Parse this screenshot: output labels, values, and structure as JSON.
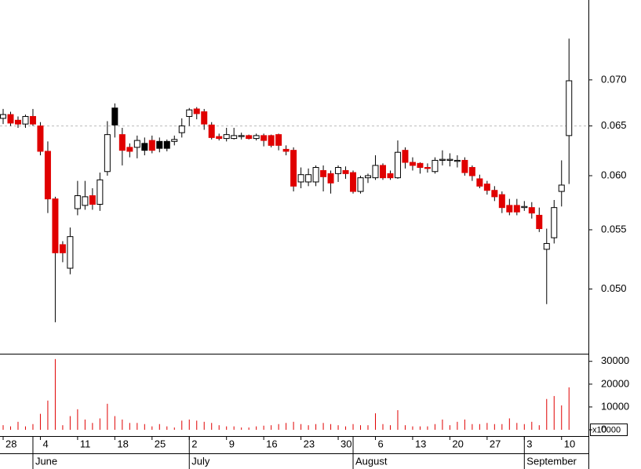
{
  "chart_data": {
    "type": "candlestick",
    "log_scale": true,
    "categories": [
      "28",
      null,
      null,
      null,
      null,
      "4",
      null,
      null,
      null,
      null,
      "11",
      null,
      null,
      null,
      null,
      "18",
      null,
      null,
      null,
      null,
      "25",
      null,
      null,
      null,
      null,
      "2",
      null,
      null,
      null,
      null,
      "9",
      null,
      null,
      null,
      null,
      "16",
      null,
      null,
      null,
      null,
      "23",
      null,
      null,
      null,
      null,
      "30",
      null,
      null,
      null,
      null,
      "6",
      null,
      null,
      null,
      null,
      "13",
      null,
      null,
      null,
      null,
      "20",
      null,
      null,
      null,
      null,
      "27",
      null,
      null,
      null,
      null,
      "3",
      null,
      null,
      null,
      null,
      "10",
      null
    ],
    "month_labels": [
      null,
      null,
      null,
      null,
      "June",
      null,
      null,
      null,
      null,
      null,
      null,
      null,
      null,
      null,
      null,
      null,
      null,
      null,
      null,
      null,
      null,
      null,
      null,
      null,
      null,
      "July",
      null,
      null,
      null,
      null,
      null,
      null,
      null,
      null,
      null,
      null,
      null,
      null,
      null,
      null,
      null,
      null,
      null,
      null,
      null,
      null,
      null,
      "August",
      null,
      null,
      null,
      null,
      null,
      null,
      null,
      null,
      null,
      null,
      null,
      null,
      null,
      null,
      null,
      null,
      null,
      null,
      null,
      null,
      null,
      null,
      "September",
      null,
      null,
      null,
      null,
      null,
      null
    ],
    "open": [
      0.0658,
      0.0662,
      0.0656,
      0.0652,
      0.066,
      0.065,
      0.0624,
      0.0578,
      0.0537,
      0.0517,
      0.0569,
      0.0572,
      0.0581,
      0.0573,
      0.0604,
      0.0651,
      0.0641,
      0.0628,
      0.0628,
      0.0625,
      0.0635,
      0.0627,
      0.0627,
      0.0634,
      0.0643,
      0.066,
      0.0668,
      0.0665,
      0.0651,
      0.0639,
      0.0637,
      0.0637,
      0.0639,
      0.064,
      0.0637,
      0.064,
      0.064,
      0.0641,
      0.0626,
      0.0625,
      0.0594,
      0.0594,
      0.0594,
      0.0605,
      0.0602,
      0.0602,
      0.0605,
      0.0603,
      0.0585,
      0.0598,
      0.0598,
      0.061,
      0.0602,
      0.0598,
      0.0625,
      0.0613,
      0.0612,
      0.0608,
      0.0604,
      0.0615,
      0.0615,
      0.0614,
      0.0615,
      0.0608,
      0.0597,
      0.0592,
      0.0586,
      0.0582,
      0.0572,
      0.0572,
      0.057,
      0.057,
      0.0563,
      0.0533,
      0.0543,
      0.0585,
      0.064
    ],
    "high": [
      0.0668,
      0.0665,
      0.066,
      0.0662,
      0.0668,
      0.0654,
      0.0634,
      0.058,
      0.054,
      0.0552,
      0.0595,
      0.0595,
      0.0588,
      0.0603,
      0.0655,
      0.0674,
      0.0648,
      0.0632,
      0.064,
      0.0638,
      0.064,
      0.0638,
      0.0636,
      0.064,
      0.0658,
      0.0669,
      0.067,
      0.0668,
      0.0654,
      0.0642,
      0.0648,
      0.0648,
      0.0643,
      0.0641,
      0.0642,
      0.0642,
      0.0641,
      0.0642,
      0.063,
      0.0628,
      0.0608,
      0.0607,
      0.061,
      0.061,
      0.0605,
      0.061,
      0.0609,
      0.0605,
      0.06,
      0.0602,
      0.062,
      0.0612,
      0.0605,
      0.0635,
      0.0628,
      0.0618,
      0.0613,
      0.0612,
      0.0618,
      0.0625,
      0.0622,
      0.062,
      0.0618,
      0.061,
      0.0601,
      0.0595,
      0.059,
      0.0585,
      0.0578,
      0.0578,
      0.0576,
      0.0575,
      0.057,
      0.0551,
      0.0577,
      0.0615,
      0.0748
    ],
    "low": [
      0.0652,
      0.065,
      0.0648,
      0.0648,
      0.065,
      0.062,
      0.0565,
      0.0474,
      0.0522,
      0.0512,
      0.0563,
      0.0568,
      0.0568,
      0.0567,
      0.06,
      0.0638,
      0.061,
      0.0618,
      0.0617,
      0.062,
      0.0622,
      0.0623,
      0.0624,
      0.063,
      0.0638,
      0.065,
      0.0657,
      0.0646,
      0.0636,
      0.0635,
      0.0634,
      0.0636,
      0.0636,
      0.0636,
      0.0635,
      0.0629,
      0.0628,
      0.0625,
      0.062,
      0.0585,
      0.0588,
      0.059,
      0.059,
      0.0585,
      0.0583,
      0.0594,
      0.0597,
      0.0583,
      0.0583,
      0.0593,
      0.0596,
      0.0596,
      0.0596,
      0.0597,
      0.0607,
      0.0605,
      0.0602,
      0.0603,
      0.0602,
      0.061,
      0.0609,
      0.0608,
      0.06,
      0.0595,
      0.0588,
      0.0582,
      0.0576,
      0.0565,
      0.0563,
      0.0563,
      0.0567,
      0.056,
      0.0548,
      0.0488,
      0.0538,
      0.0571,
      0.0592
    ],
    "close": [
      0.0662,
      0.0653,
      0.0652,
      0.066,
      0.0652,
      0.0624,
      0.0578,
      0.053,
      0.053,
      0.0544,
      0.0581,
      0.058,
      0.0573,
      0.0596,
      0.0641,
      0.0669,
      0.0625,
      0.0624,
      0.0635,
      0.0632,
      0.0625,
      0.0634,
      0.0634,
      0.0636,
      0.065,
      0.0667,
      0.0663,
      0.0652,
      0.0638,
      0.0637,
      0.0641,
      0.064,
      0.064,
      0.0637,
      0.064,
      0.0635,
      0.063,
      0.063,
      0.0624,
      0.059,
      0.0601,
      0.0601,
      0.0608,
      0.0599,
      0.0593,
      0.0608,
      0.0602,
      0.0585,
      0.0598,
      0.06,
      0.061,
      0.0598,
      0.0598,
      0.0623,
      0.0613,
      0.061,
      0.0608,
      0.0607,
      0.0615,
      0.0616,
      0.0616,
      0.0615,
      0.0603,
      0.06,
      0.059,
      0.0586,
      0.058,
      0.057,
      0.0566,
      0.0566,
      0.0571,
      0.0565,
      0.0551,
      0.0538,
      0.057,
      0.0591,
      0.0699
    ],
    "colors": [
      "#ffffff",
      "#e00000",
      "#e00000",
      "#ffffff",
      "#e00000",
      "#e00000",
      "#e00000",
      "#e00000",
      "#e00000",
      "#ffffff",
      "#ffffff",
      "#ffffff",
      "#e00000",
      "#ffffff",
      "#ffffff",
      "#000000",
      "#e00000",
      "#e00000",
      "#ffffff",
      "#000000",
      "#e00000",
      "#000000",
      "#000000",
      "#ffffff",
      "#ffffff",
      "#ffffff",
      "#e00000",
      "#e00000",
      "#e00000",
      "#e00000",
      "#ffffff",
      "#ffffff",
      "#ffffff",
      "#e00000",
      "#ffffff",
      "#e00000",
      "#e00000",
      "#e00000",
      "#e00000",
      "#e00000",
      "#ffffff",
      "#ffffff",
      "#ffffff",
      "#e00000",
      "#e00000",
      "#ffffff",
      "#e00000",
      "#e00000",
      "#ffffff",
      "#ffffff",
      "#ffffff",
      "#e00000",
      "#e00000",
      "#ffffff",
      "#e00000",
      "#e00000",
      "#e00000",
      "#e00000",
      "#ffffff",
      "#ffffff",
      "#ffffff",
      "#ffffff",
      "#e00000",
      "#e00000",
      "#e00000",
      "#e00000",
      "#e00000",
      "#e00000",
      "#e00000",
      "#e00000",
      "#ffffff",
      "#e00000",
      "#e00000",
      "#ffffff",
      "#ffffff",
      "#ffffff",
      "#ffffff"
    ],
    "volume": [
      2000,
      1500,
      3500,
      1500,
      2500,
      7000,
      12800,
      31000,
      2000,
      6000,
      9000,
      4500,
      3000,
      5000,
      11400,
      6000,
      4500,
      3000,
      3000,
      2500,
      1500,
      2500,
      1500,
      1000,
      4000,
      4500,
      4000,
      3500,
      3000,
      2000,
      1500,
      1500,
      1000,
      1000,
      1500,
      1800,
      2000,
      2500,
      3000,
      3500,
      2500,
      2000,
      2500,
      3000,
      2500,
      2000,
      1500,
      2500,
      2000,
      2000,
      7200,
      2500,
      2000,
      8600,
      2000,
      1500,
      1500,
      1500,
      2500,
      4500,
      2000,
      3500,
      4500,
      2500,
      2500,
      3000,
      2500,
      2500,
      5000,
      3000,
      2500,
      3500,
      2000,
      13500,
      14800,
      10700,
      18600
    ],
    "volume_color": "#e00000",
    "ylim": [
      0.045,
      0.0796
    ],
    "yticks": [
      {
        "value": 0.05,
        "label": "0.050"
      },
      {
        "value": 0.055,
        "label": "0.055"
      },
      {
        "value": 0.06,
        "label": "0.060"
      },
      {
        "value": 0.065,
        "label": "0.065"
      },
      {
        "value": 0.07,
        "label": "0.070"
      }
    ],
    "reference_line": 0.065,
    "volume_ylim": [
      0,
      33000
    ],
    "volume_yticks": [
      0,
      10000,
      20000,
      30000
    ],
    "volume_axis_label": "x10000"
  }
}
